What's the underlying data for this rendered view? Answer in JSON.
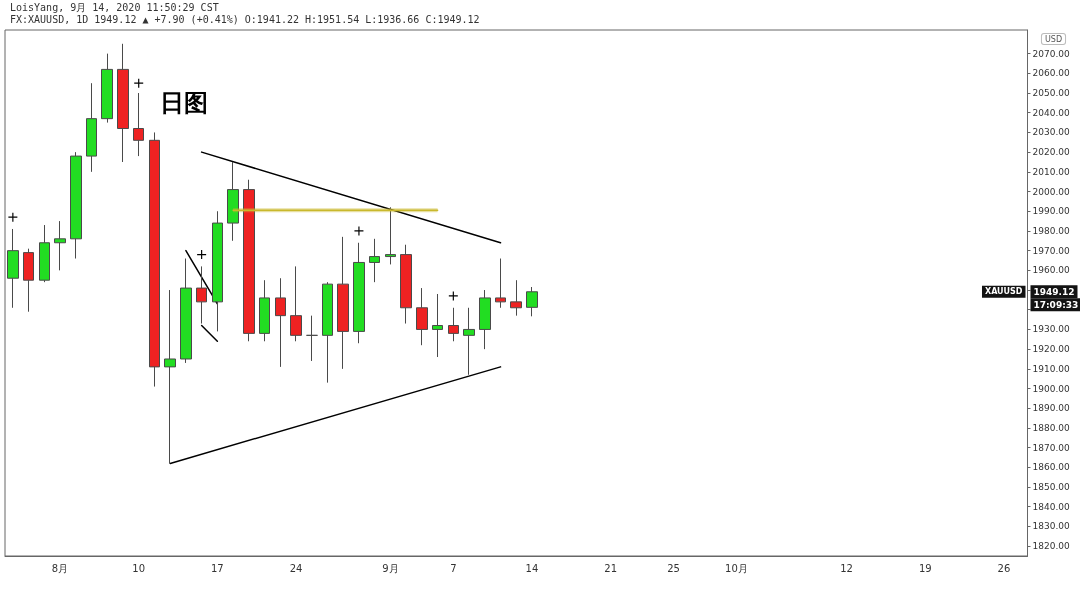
{
  "chart_data": {
    "type": "candlestick",
    "title": "LoisYang, 9月 14, 2020 11:50:29 CST",
    "subtitle": "FX:XAUUSD, 1D 1949.12 ▲ +7.90 (+0.41%) O:1941.22 H:1951.54 L:1936.66 C:1949.12",
    "ylabel": "USD",
    "annotations": [
      "日图",
      "XAUUSD",
      "1949.12",
      "17:09:33"
    ],
    "categories": [
      null,
      null,
      null,
      "8月",
      null,
      null,
      null,
      null,
      "10",
      null,
      null,
      null,
      null,
      "17",
      null,
      null,
      null,
      null,
      "24",
      null,
      null,
      null,
      null,
      null,
      "9月",
      null,
      null,
      null,
      "7",
      null,
      null,
      null,
      null,
      "14",
      null,
      null,
      null,
      null,
      "21",
      null,
      null,
      null,
      "25",
      null,
      null,
      null,
      "10月",
      null,
      null,
      null,
      null,
      null,
      null,
      "12",
      null,
      null,
      null,
      null,
      "19",
      null,
      null,
      null,
      null,
      "26",
      null
    ],
    "ylim": [
      1815,
      2082
    ],
    "yticks": [
      {
        "value": 1820,
        "label": "1820.00"
      },
      {
        "value": 1830,
        "label": "1830.00"
      },
      {
        "value": 1840,
        "label": "1840.00"
      },
      {
        "value": 1850,
        "label": "1850.00"
      },
      {
        "value": 1860,
        "label": "1860.00"
      },
      {
        "value": 1870,
        "label": "1870.00"
      },
      {
        "value": 1880,
        "label": "1880.00"
      },
      {
        "value": 1890,
        "label": "1890.00"
      },
      {
        "value": 1900,
        "label": "1900.00"
      },
      {
        "value": 1910,
        "label": "1910.00"
      },
      {
        "value": 1920,
        "label": "1920.00"
      },
      {
        "value": 1930,
        "label": "1930.00"
      },
      {
        "value": 1940,
        "label": null
      },
      {
        "value": 1950,
        "label": null
      },
      {
        "value": 1960,
        "label": "1960.00"
      },
      {
        "value": 1970,
        "label": "1970.00"
      },
      {
        "value": 1980,
        "label": "1980.00"
      },
      {
        "value": 1990,
        "label": "1990.00"
      },
      {
        "value": 2000,
        "label": "2000.00"
      },
      {
        "value": 2010,
        "label": "2010.00"
      },
      {
        "value": 2020,
        "label": "2020.00"
      },
      {
        "value": 2030,
        "label": "2030.00"
      },
      {
        "value": 2040,
        "label": "2040.00"
      },
      {
        "value": 2050,
        "label": "2050.00"
      },
      {
        "value": 2060,
        "label": "2060.00"
      },
      {
        "value": 2070,
        "label": "2070.00"
      }
    ],
    "series": [
      {
        "type": "line",
        "color": "#c9b82c",
        "marker": "none",
        "values": [
          null,
          null,
          null,
          null,
          null,
          null,
          null,
          null,
          null,
          null,
          null,
          null,
          null,
          null,
          1990.5,
          null,
          null,
          null,
          null,
          null,
          null,
          null,
          null,
          null,
          null,
          null,
          null,
          1990.5,
          null,
          null,
          null,
          null,
          null,
          null,
          null,
          null,
          null,
          null,
          null,
          null,
          null,
          null,
          null,
          null,
          null,
          null,
          null,
          null,
          null,
          null,
          null,
          null,
          null,
          null,
          null,
          null,
          null,
          null,
          null,
          null,
          null,
          null,
          null,
          null,
          null
        ],
        "lower": [
          null,
          null,
          null,
          null,
          null,
          null,
          null,
          null,
          null,
          null,
          null,
          null,
          null,
          null,
          1989.5,
          null,
          null,
          null,
          null,
          null,
          null,
          null,
          null,
          null,
          null,
          null,
          null,
          1989.5,
          null,
          null,
          null,
          null,
          null,
          null,
          null,
          null,
          null,
          null,
          null,
          null,
          null,
          null,
          null,
          null,
          null,
          null,
          null,
          null,
          null,
          null,
          null,
          null,
          null,
          null,
          null,
          null,
          null,
          null,
          null,
          null,
          null,
          null,
          null,
          null,
          null
        ],
        "upper": [
          null,
          null,
          null,
          null,
          null,
          null,
          null,
          null,
          null,
          null,
          null,
          null,
          null,
          null,
          1991.5,
          null,
          null,
          null,
          null,
          null,
          null,
          null,
          null,
          null,
          null,
          null,
          null,
          1991.5,
          null,
          null,
          null,
          null,
          null,
          null,
          null,
          null,
          null,
          null,
          null,
          null,
          null,
          null,
          null,
          null,
          null,
          null,
          null,
          null,
          null,
          null,
          null,
          null,
          null,
          null,
          null,
          null,
          null,
          null,
          null,
          null,
          null,
          null,
          null,
          null,
          null
        ]
      },
      {
        "type": "line",
        "color": "#000000",
        "marker": "none",
        "values": [
          null,
          null,
          null,
          null,
          null,
          null,
          null,
          null,
          null,
          null,
          null,
          null,
          2020,
          null,
          null,
          null,
          null,
          null,
          null,
          null,
          null,
          null,
          null,
          null,
          null,
          null,
          null,
          null,
          null,
          null,
          null,
          1974,
          null,
          null,
          null,
          null,
          null,
          null,
          null,
          null,
          null,
          null,
          null,
          null,
          null,
          null,
          null,
          null,
          null,
          null,
          null,
          null,
          null,
          null,
          null,
          null,
          null,
          null,
          null,
          null,
          null,
          null,
          null,
          null,
          null
        ]
      },
      {
        "type": "line",
        "color": "#000000",
        "marker": "none",
        "values": [
          null,
          null,
          null,
          null,
          null,
          null,
          null,
          null,
          null,
          null,
          1862,
          null,
          null,
          null,
          null,
          null,
          null,
          null,
          null,
          null,
          null,
          null,
          null,
          null,
          null,
          null,
          null,
          null,
          null,
          null,
          null,
          1911,
          null,
          null,
          null,
          null,
          null,
          null,
          null,
          null,
          null,
          null,
          null,
          null,
          null,
          null,
          null,
          null,
          null,
          null,
          null,
          null,
          null,
          null,
          null,
          null,
          null,
          null,
          null,
          null,
          null,
          null,
          null,
          null,
          null
        ]
      },
      {
        "type": "line",
        "color": "#000000",
        "marker": "none",
        "values": [
          null,
          null,
          null,
          null,
          null,
          null,
          null,
          null,
          null,
          null,
          null,
          1970,
          null,
          1943,
          null,
          null,
          null,
          null,
          null,
          null,
          null,
          null,
          null,
          null,
          null,
          null,
          null,
          null,
          null,
          null,
          null,
          null,
          null,
          null,
          null,
          null,
          null,
          null,
          null,
          null,
          null,
          null,
          null,
          null,
          null,
          null,
          null,
          null,
          null,
          null,
          null,
          null,
          null,
          null,
          null,
          null,
          null,
          null,
          null,
          null,
          null,
          null,
          null,
          null,
          null
        ]
      },
      {
        "type": "line",
        "color": "#000000",
        "marker": "none",
        "values": [
          null,
          null,
          null,
          null,
          null,
          null,
          null,
          null,
          null,
          null,
          null,
          null,
          1932,
          1924,
          null,
          null,
          null,
          null,
          null,
          null,
          null,
          null,
          null,
          null,
          null,
          null,
          null,
          null,
          null,
          null,
          null,
          null,
          null,
          null,
          null,
          null,
          null,
          null,
          null,
          null,
          null,
          null,
          null,
          null,
          null,
          null,
          null,
          null,
          null,
          null,
          null,
          null,
          null,
          null,
          null,
          null,
          null,
          null,
          null,
          null,
          null,
          null,
          null,
          null,
          null
        ]
      },
      {
        "type": "scatter",
        "color": "#000000",
        "marker": "cross",
        "values": [
          1987,
          null,
          null,
          null,
          null,
          null,
          null,
          null,
          2055,
          null,
          null,
          null,
          1968,
          null,
          null,
          null,
          null,
          null,
          null,
          null,
          null,
          null,
          1980,
          null,
          null,
          null,
          null,
          null,
          1947,
          null,
          null,
          null,
          null,
          null,
          null,
          null,
          null,
          null,
          null,
          null,
          null,
          null,
          null,
          null,
          null,
          null,
          null,
          null,
          null,
          null,
          null,
          null,
          null,
          null,
          null,
          null,
          null,
          null,
          null,
          null,
          null,
          null,
          null,
          null,
          null
        ]
      },
      {
        "ohlc": [
          [
            1956,
            1981,
            1941,
            1970
          ],
          [
            1969,
            1971,
            1939,
            1955
          ],
          [
            1955,
            1983,
            1954,
            1974
          ],
          [
            1974,
            1985,
            1960,
            1976
          ],
          [
            1976,
            2020,
            1966,
            2018
          ],
          [
            2018,
            2055,
            2010,
            2037
          ],
          [
            2037,
            2070,
            2035,
            2062
          ],
          [
            2062,
            2075,
            2015,
            2032
          ],
          [
            2032,
            2050,
            2018,
            2026
          ],
          [
            2026,
            2030,
            1901,
            1911
          ],
          [
            1911,
            1950,
            1862,
            1915
          ],
          [
            1915,
            1966,
            1913,
            1951
          ],
          [
            1951,
            1962,
            1933,
            1944
          ],
          [
            1944,
            1990,
            1929,
            1984
          ],
          [
            1984,
            2015,
            1975,
            2001
          ],
          [
            2001,
            2006,
            1924,
            1928
          ],
          [
            1928,
            1955,
            1924,
            1946
          ],
          [
            1946,
            1956,
            1911,
            1937
          ],
          [
            1937,
            1962,
            1924,
            1927
          ],
          [
            1927,
            1937,
            1914,
            1927
          ],
          [
            1927,
            1954,
            1903,
            1953
          ],
          [
            1953,
            1977,
            1910,
            1929
          ],
          [
            1929,
            1974,
            1923,
            1964
          ],
          [
            1964,
            1976,
            1954,
            1967
          ],
          [
            1967,
            1992,
            1963,
            1968
          ],
          [
            1968,
            1973,
            1933,
            1941
          ],
          [
            1941,
            1951,
            1922,
            1930
          ],
          [
            1930,
            1948,
            1916,
            1932
          ],
          [
            1932,
            1941,
            1924,
            1928
          ],
          [
            1927,
            1941,
            1907,
            1930
          ],
          [
            1930,
            1950,
            1920,
            1946
          ],
          [
            1946,
            1966,
            1941,
            1944
          ],
          [
            1944,
            1955,
            1937,
            1941
          ],
          [
            1941.22,
            1951.54,
            1936.66,
            1949.12
          ],
          null,
          null,
          null,
          null,
          null,
          null,
          null,
          null,
          null,
          null,
          null,
          null,
          null,
          null,
          null,
          null,
          null,
          null,
          null,
          null,
          null,
          null,
          null,
          null,
          null,
          null,
          null,
          null,
          null,
          null,
          null
        ],
        "colors": [
          "#22dd22",
          "#ee2222",
          "#22dd22",
          "#22dd22",
          "#22dd22",
          "#22dd22",
          "#22dd22",
          "#ee2222",
          "#ee2222",
          "#ee2222",
          "#22dd22",
          "#22dd22",
          "#ee2222",
          "#22dd22",
          "#22dd22",
          "#ee2222",
          "#22dd22",
          "#ee2222",
          "#ee2222",
          "#555555",
          "#22dd22",
          "#ee2222",
          "#22dd22",
          "#22dd22",
          "#22dd22",
          "#ee2222",
          "#ee2222",
          "#22dd22",
          "#ee2222",
          "#22dd22",
          "#22dd22",
          "#ee2222",
          "#ee2222",
          "#22dd22",
          null,
          null,
          null,
          null,
          null,
          null,
          null,
          null,
          null,
          null,
          null,
          null,
          null,
          null,
          null,
          null,
          null,
          null,
          null,
          null,
          null,
          null,
          null,
          null,
          null,
          null,
          null,
          null,
          null,
          null,
          null
        ]
      }
    ]
  }
}
